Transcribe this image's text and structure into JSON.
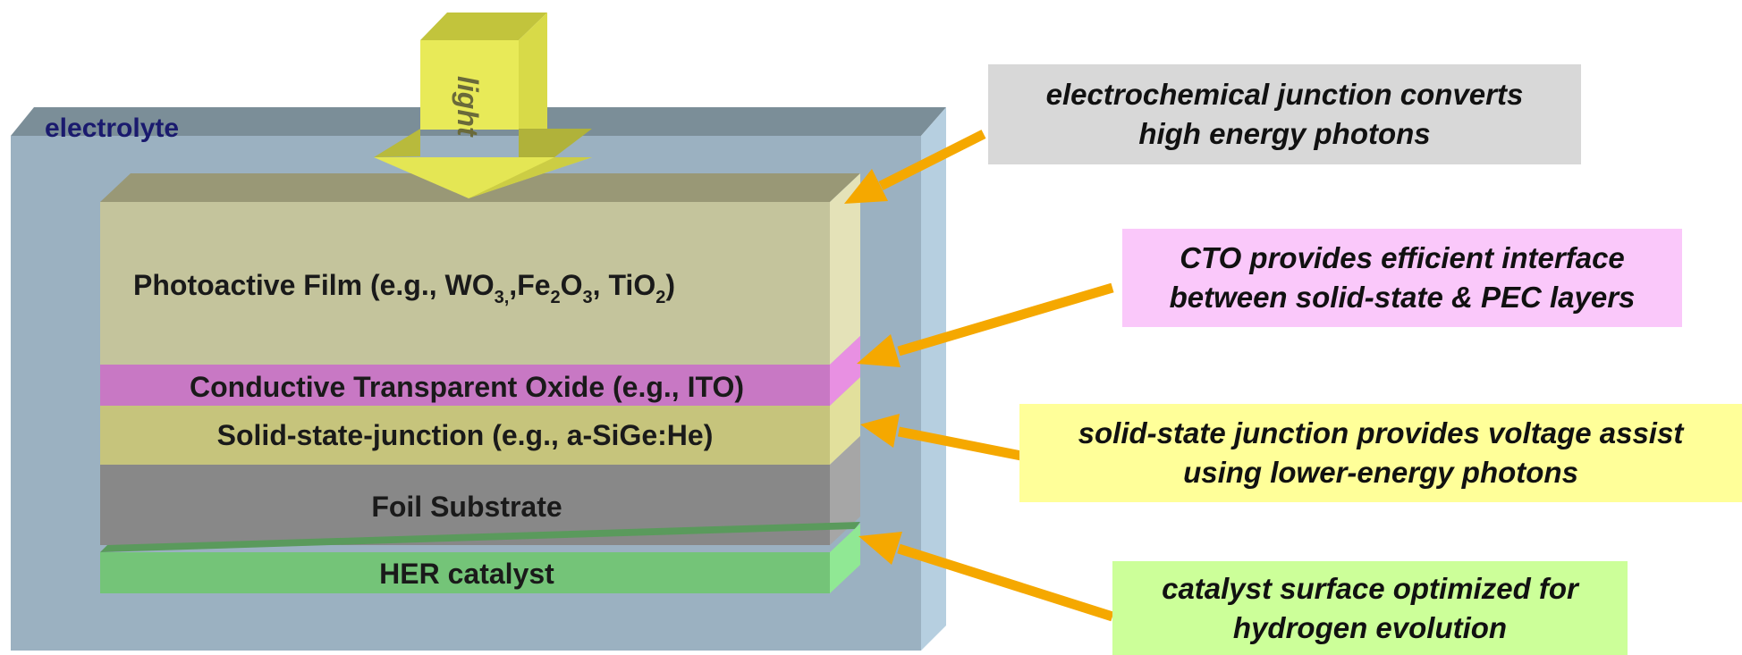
{
  "diagram": {
    "electrolyte_label": "electrolyte",
    "light_label": "light",
    "layers": {
      "photoactive": {
        "label": "Photoactive Film (e.g., WO",
        "sub1": "3,",
        "mid1": ",Fe",
        "sub2": "2",
        "mid2": "O",
        "sub3": "3",
        "mid3": ", TiO",
        "sub4": "2",
        "end": ")"
      },
      "cto": {
        "label": "Conductive Transparent Oxide (e.g., ITO)"
      },
      "solid_state": {
        "label": "Solid-state-junction (e.g., a-SiGe:He)"
      },
      "foil": {
        "label": "Foil Substrate"
      },
      "her": {
        "label": "HER catalyst"
      }
    },
    "callouts": [
      {
        "line1": "electrochemical  junction converts",
        "line2": "high energy photons"
      },
      {
        "line1": "CTO provides efficient interface",
        "line2": "between solid-state & PEC layers"
      },
      {
        "line1": "solid-state  junction provides voltage assist",
        "line2": "using lower-energy photons"
      },
      {
        "line1": "catalyst surface optimized for",
        "line2": "hydrogen evolution"
      }
    ],
    "colors": {
      "electrolyte_front": "#9bb1c1",
      "electrolyte_top": "#7b8e98",
      "electrolyte_side": "#b6cfe0",
      "photoactive": "#c4c49c",
      "cto": "#c878c4",
      "solid_state": "#c6c47c",
      "foil": "#888888",
      "her": "#74c478",
      "arrow": "#f5a800",
      "light_arrow": "#e4e654"
    }
  }
}
